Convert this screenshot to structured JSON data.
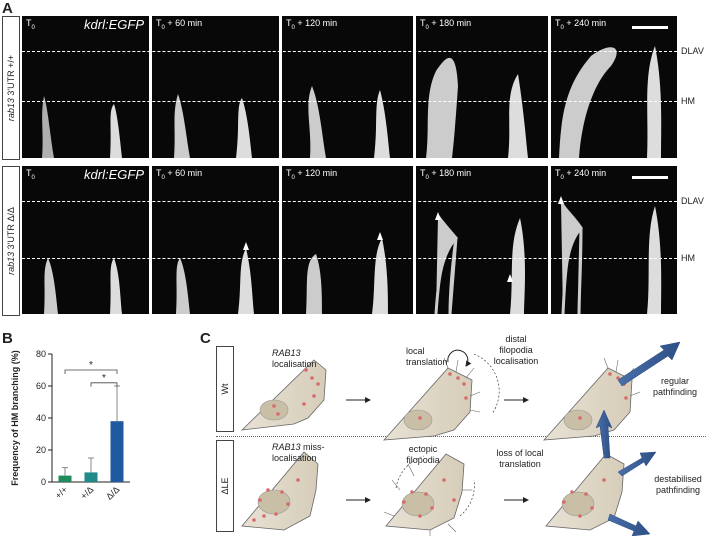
{
  "figure": {
    "panel_a": {
      "letter": "A"
    },
    "panel_b": {
      "letter": "B"
    },
    "panel_c": {
      "letter": "C"
    },
    "rows": [
      {
        "label_gene": "rab13",
        "label_rest": " 3'UTR +/+",
        "frames": [
          "T0",
          "T0 + 60 min",
          "T0 + 120 min",
          "T0 + 180 min",
          "T0 + 240 min"
        ],
        "gene_tag": "kdrl:EGFP"
      },
      {
        "label_gene": "rab13",
        "label_rest": " 3'UTR Δ/Δ",
        "frames": [
          "T0",
          "T0 + 60 min",
          "T0 + 120 min",
          "T0 + 180 min",
          "T0 + 240 min"
        ],
        "gene_tag": "kdrl:EGFP"
      }
    ],
    "side_labels": {
      "top": "DLAV",
      "bottom": "HM"
    },
    "schematic": {
      "row_wt": "Wt",
      "row_dle": "ΔLE",
      "wt_labels": {
        "rab13_loc_italic": "RAB13",
        "rab13_loc_rest": "localisation",
        "local_translation": "local translation",
        "distal_filopodia": "distal filopodia localisation",
        "result": "regular pathfinding"
      },
      "dle_labels": {
        "rab13_miss_italic": "RAB13",
        "rab13_miss_rest": "miss-localisation",
        "ectopic": "ectopic filopodia",
        "loss": "loss of local translation",
        "result": "destabilised pathfinding"
      }
    }
  },
  "chart_data": {
    "type": "bar",
    "ylabel": "Frequency of HM branching (%)",
    "categories": [
      "+/+",
      "+/Δ",
      "Δ/Δ"
    ],
    "values": [
      4,
      6,
      38
    ],
    "errors": [
      5,
      9,
      22
    ],
    "ylim": [
      0,
      80
    ],
    "yticks": [
      0,
      20,
      40,
      60,
      80
    ],
    "colors": [
      "#1f8a5b",
      "#1f8a8a",
      "#1f5aa0"
    ],
    "significance": [
      {
        "from": 0,
        "to": 2,
        "label": "*"
      },
      {
        "from": 1,
        "to": 2,
        "label": "*"
      }
    ]
  }
}
